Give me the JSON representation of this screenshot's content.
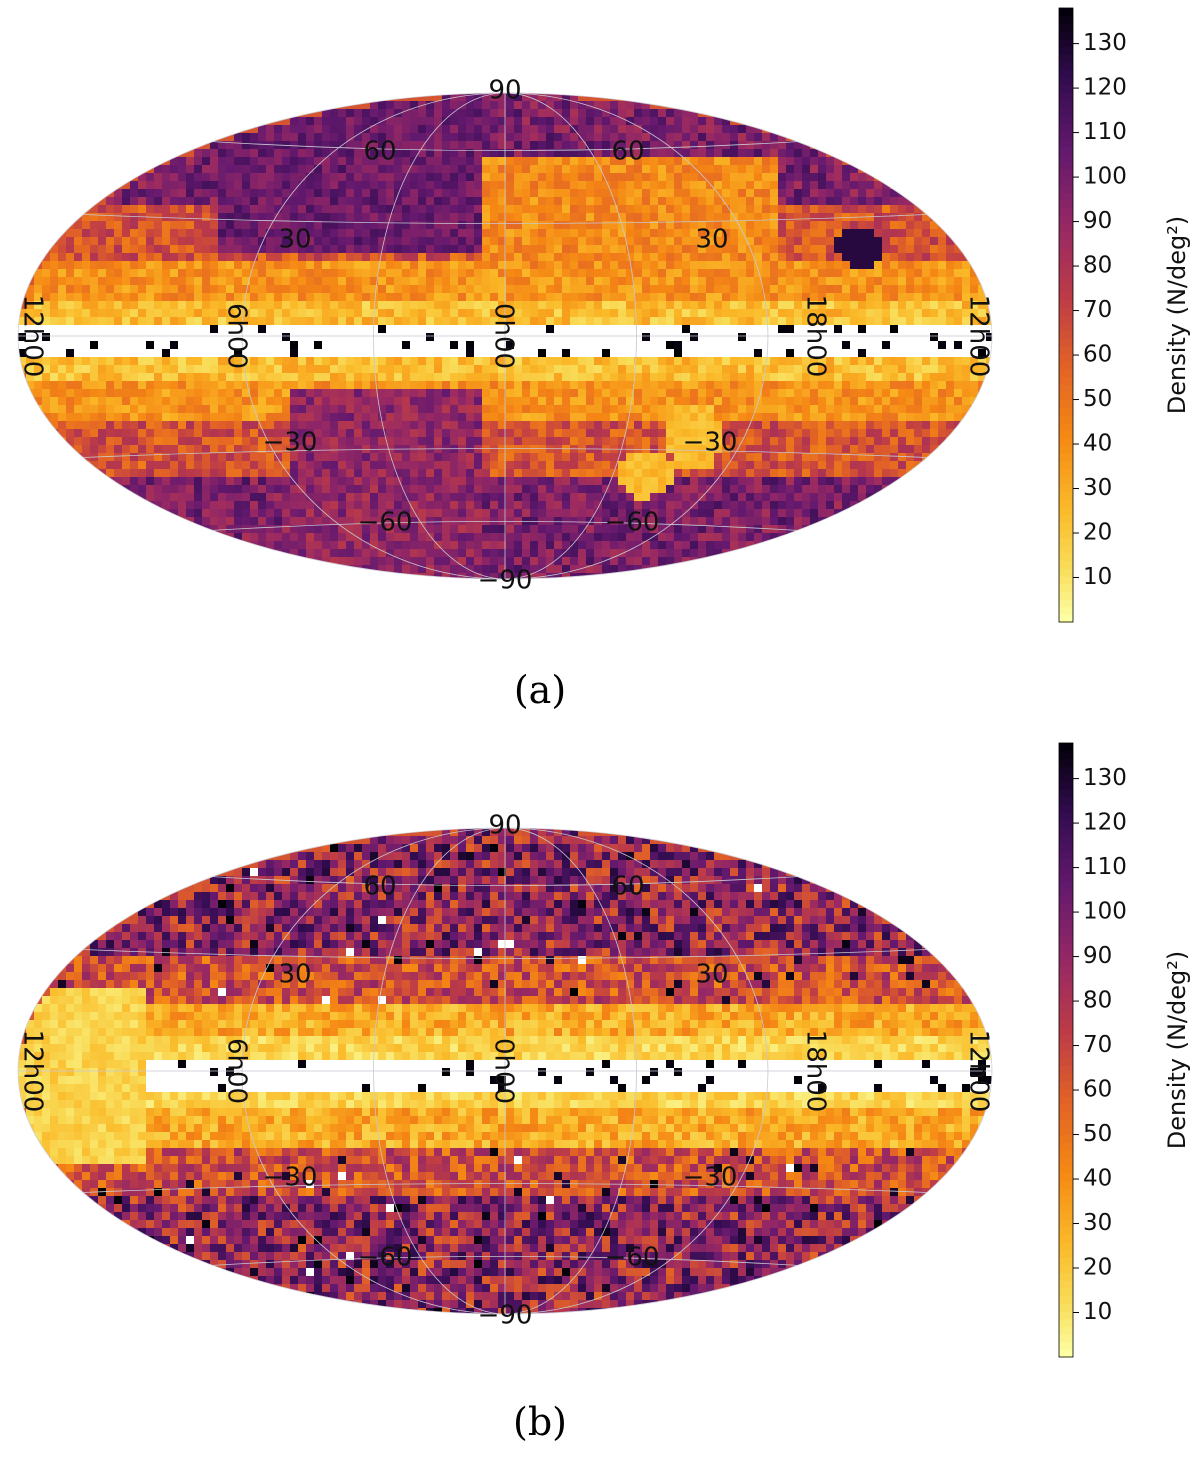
{
  "chart_data": [
    {
      "type": "heatmap",
      "subtitle": "(a)",
      "projection": "aitoff-like all-sky",
      "colormap": "inferno (reversed)",
      "color_range": [
        0,
        138
      ],
      "colorbar": {
        "label": "Density (N/deg²)",
        "ticks": [
          10,
          20,
          30,
          40,
          50,
          60,
          70,
          80,
          90,
          100,
          110,
          120,
          130
        ]
      },
      "meridian_labels": [
        "12h00",
        "6h00",
        "0h00",
        "18h00",
        "12h00"
      ],
      "parallel_labels": [
        "90",
        "60",
        "30",
        "−30",
        "−60",
        "−90",
        "60",
        "30",
        "−30",
        "−60"
      ],
      "description_values": {
        "plane_density": "saturated (>130)",
        "high_latitude_density": "≈90–120",
        "mid_latitude_density": "≈20–60"
      }
    },
    {
      "type": "heatmap",
      "subtitle": "(b)",
      "projection": "aitoff-like all-sky",
      "colormap": "inferno (reversed)",
      "color_range": [
        0,
        138
      ],
      "colorbar": {
        "label": "Density (N/deg²)",
        "ticks": [
          10,
          20,
          30,
          40,
          50,
          60,
          70,
          80,
          90,
          100,
          110,
          120,
          130
        ]
      },
      "meridian_labels": [
        "12h00",
        "6h00",
        "0h00",
        "18h00",
        "12h00"
      ],
      "parallel_labels": [
        "90",
        "60",
        "30",
        "−30",
        "−60",
        "−90",
        "60",
        "30",
        "−30",
        "−60"
      ],
      "description_values": {
        "plane_density": "saturated (>130)",
        "high_latitude_density": "≈60–130 (clumpy)",
        "mid_latitude_density": "≈10–60"
      }
    }
  ]
}
